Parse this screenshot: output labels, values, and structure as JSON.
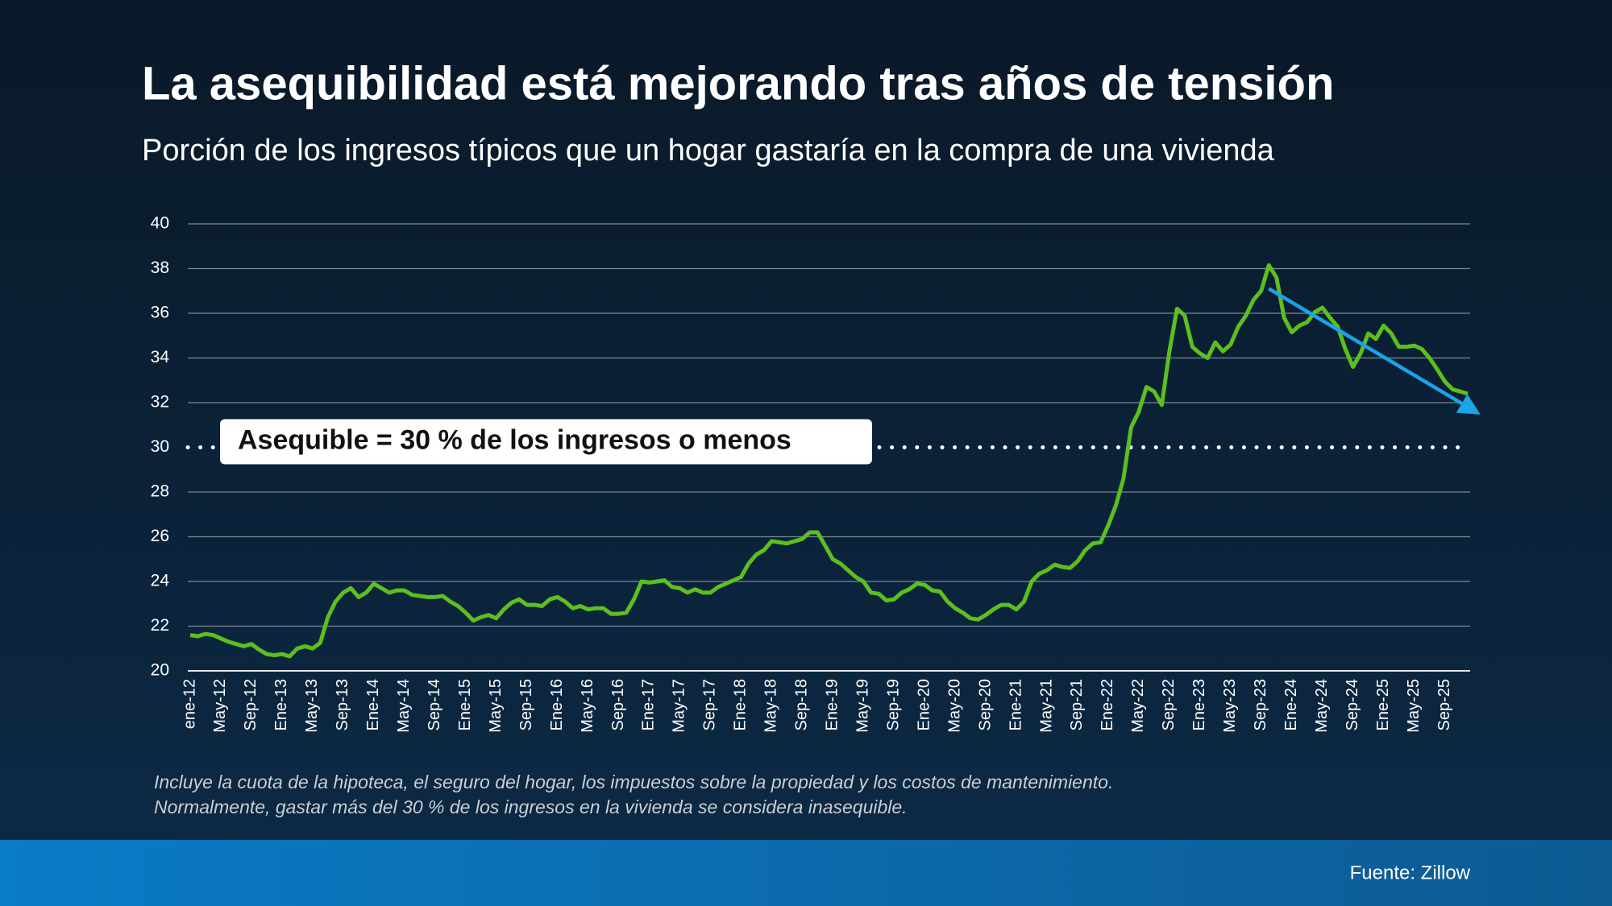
{
  "title": "La asequibilidad está mejorando tras años de tensión",
  "subtitle": "Porción de los ingresos típicos que un hogar gastaría en la compra de una vivienda",
  "footnotes": [
    "Incluye la cuota de la hipoteca, el seguro del hogar, los impuestos sobre la propiedad y los costos de mantenimiento.",
    "Normalmente, gastar más del 30 % de los ingresos en la vivienda se considera inasequible."
  ],
  "source": "Fuente: Zillow",
  "chart_data": {
    "type": "line",
    "categories": [
      "ene-12",
      null,
      null,
      null,
      "May-12",
      null,
      null,
      null,
      "Sep-12",
      null,
      null,
      null,
      "Ene-13",
      null,
      null,
      null,
      "May-13",
      null,
      null,
      null,
      "Sep-13",
      null,
      null,
      null,
      "Ene-14",
      null,
      null,
      null,
      "May-14",
      null,
      null,
      null,
      "Sep-14",
      null,
      null,
      null,
      "Ene-15",
      null,
      null,
      null,
      "May-15",
      null,
      null,
      null,
      "Sep-15",
      null,
      null,
      null,
      "Ene-16",
      null,
      null,
      null,
      "May-16",
      null,
      null,
      null,
      "Sep-16",
      null,
      null,
      null,
      "Ene-17",
      null,
      null,
      null,
      "May-17",
      null,
      null,
      null,
      "Sep-17",
      null,
      null,
      null,
      "Ene-18",
      null,
      null,
      null,
      "May-18",
      null,
      null,
      null,
      "Sep-18",
      null,
      null,
      null,
      "Ene-19",
      null,
      null,
      null,
      "May-19",
      null,
      null,
      null,
      "Sep-19",
      null,
      null,
      null,
      "Ene-20",
      null,
      null,
      null,
      "May-20",
      null,
      null,
      null,
      "Sep-20",
      null,
      null,
      null,
      "Ene-21",
      null,
      null,
      null,
      "May-21",
      null,
      null,
      null,
      "Sep-21",
      null,
      null,
      null,
      "Ene-22",
      null,
      null,
      null,
      "May-22",
      null,
      null,
      null,
      "Sep-22",
      null,
      null,
      null,
      "Ene-23",
      null,
      null,
      null,
      "May-23",
      null,
      null,
      null,
      "Sep-23",
      null,
      null,
      null,
      "Ene-24",
      null,
      null,
      null,
      "May-24",
      null,
      null,
      null,
      "Sep-24",
      null,
      null,
      null,
      "Ene-25",
      null,
      null,
      null,
      "May-25",
      null,
      null,
      null,
      "Sep-25",
      null,
      null,
      null
    ],
    "values": [
      21.6,
      21.55,
      21.65,
      21.6,
      21.45,
      21.3,
      21.2,
      21.1,
      21.2,
      20.95,
      20.75,
      20.7,
      20.75,
      20.65,
      21.0,
      21.1,
      21.0,
      21.25,
      22.4,
      23.1,
      23.5,
      23.7,
      23.3,
      23.5,
      23.9,
      23.7,
      23.5,
      23.6,
      23.6,
      23.4,
      23.35,
      23.3,
      23.3,
      23.35,
      23.1,
      22.9,
      22.6,
      22.25,
      22.4,
      22.5,
      22.35,
      22.75,
      23.05,
      23.2,
      22.95,
      22.95,
      22.9,
      23.2,
      23.3,
      23.1,
      22.8,
      22.9,
      22.75,
      22.8,
      22.8,
      22.55,
      22.55,
      22.6,
      23.2,
      24.0,
      23.95,
      24.0,
      24.05,
      23.75,
      23.7,
      23.5,
      23.65,
      23.5,
      23.5,
      23.75,
      23.9,
      24.05,
      24.2,
      24.8,
      25.2,
      25.4,
      25.8,
      25.75,
      25.7,
      25.8,
      25.9,
      26.2,
      26.2,
      25.6,
      25.0,
      24.8,
      24.5,
      24.2,
      24.0,
      23.5,
      23.45,
      23.15,
      23.2,
      23.5,
      23.65,
      23.9,
      23.85,
      23.6,
      23.55,
      23.1,
      22.8,
      22.6,
      22.35,
      22.3,
      22.5,
      22.75,
      22.95,
      22.95,
      22.75,
      23.1,
      24.0,
      24.35,
      24.5,
      24.75,
      24.65,
      24.6,
      24.9,
      25.4,
      25.7,
      25.75,
      26.5,
      27.4,
      28.6,
      30.9,
      31.6,
      32.7,
      32.5,
      31.9,
      34.3,
      36.2,
      35.9,
      34.5,
      34.2,
      34.0,
      34.7,
      34.3,
      34.6,
      35.4,
      35.9,
      36.6,
      37.0,
      38.15,
      37.6,
      35.8,
      35.15,
      35.45,
      35.6,
      36.05,
      36.25,
      35.8,
      35.4,
      34.4,
      33.6,
      34.2,
      35.1,
      34.85,
      35.45,
      35.1,
      34.5,
      34.5,
      34.55,
      34.4,
      34.0,
      33.5,
      32.95,
      32.6,
      32.5,
      32.4
    ],
    "color": "#5cbf1f",
    "ylim": [
      20,
      40
    ],
    "yticks": [
      20,
      22,
      24,
      26,
      28,
      30,
      32,
      34,
      36,
      38,
      40
    ],
    "grid": true,
    "reference_line": {
      "value": 30,
      "label": "Asequible = 30 % de los ingresos o menos"
    },
    "trend_arrow": {
      "from": [
        141,
        37.1
      ],
      "to": [
        168.5,
        31.5
      ],
      "color": "#1aa3e8"
    }
  }
}
